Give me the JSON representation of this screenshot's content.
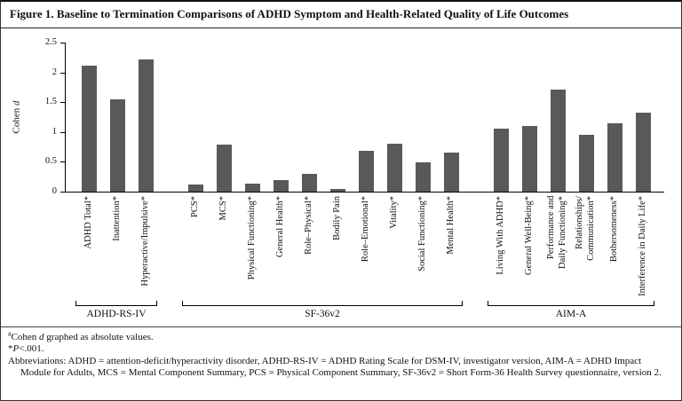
{
  "figure": {
    "title": "Figure 1. Baseline to Termination Comparisons of ADHD Symptom and Health-Related Quality of Life Outcomes"
  },
  "chart_data": {
    "type": "bar",
    "title": "Baseline to Termination Comparisons of ADHD Symptom and Health-Related Quality of Life Outcomes",
    "ylabel": "Cohen d",
    "ylabel_parts": {
      "pre": "Cohen ",
      "it": "d"
    },
    "ylim": [
      0,
      2.5
    ],
    "yticks": [
      0,
      0.5,
      1,
      1.5,
      2,
      2.5
    ],
    "grid": false,
    "legend": false,
    "bar_color": "#58595b",
    "groups": [
      {
        "name": "ADHD-RS-IV",
        "categories": [
          "ADHD Total*",
          "Inattention*",
          "Hyperactive/Impulsive*"
        ],
        "values": [
          2.12,
          1.55,
          2.22
        ]
      },
      {
        "name": "SF-36v2",
        "categories": [
          "PCS*",
          "MCS*",
          "Physical Functioning*",
          "General Health*",
          "Role–Physical*",
          "Bodily Pain",
          "Role–Emotional*",
          "Vitality*",
          "Social Functioning*",
          "Mental Health*"
        ],
        "values": [
          0.12,
          0.79,
          0.13,
          0.19,
          0.3,
          0.05,
          0.68,
          0.8,
          0.49,
          0.65
        ]
      },
      {
        "name": "AIM-A",
        "categories": [
          "Living With ADHD*",
          "General Well-Being*",
          "Performance and\nDaily Functioning*",
          "Relationships/\nCommunication*",
          "Bothersomeness*",
          "Interference in Daily Life*"
        ],
        "values": [
          1.06,
          1.1,
          1.71,
          0.95,
          1.15,
          1.32
        ]
      }
    ]
  },
  "footnotes": {
    "note_a": {
      "sup": "a",
      "pre": "Cohen ",
      "it": "d",
      "post": " graphed as absolute values."
    },
    "note_sig": {
      "star": "*",
      "it": "P",
      "post": "<.001."
    },
    "abbreviations": "Abbreviations: ADHD = attention-deficit/hyperactivity disorder, ADHD-RS-IV = ADHD Rating Scale for DSM-IV, investigator version, AIM-A = ADHD Impact Module for Adults, MCS = Mental Component Summary, PCS = Physical Component Summary, SF-36v2 = Short Form-36 Health Survey questionnaire, version 2."
  }
}
